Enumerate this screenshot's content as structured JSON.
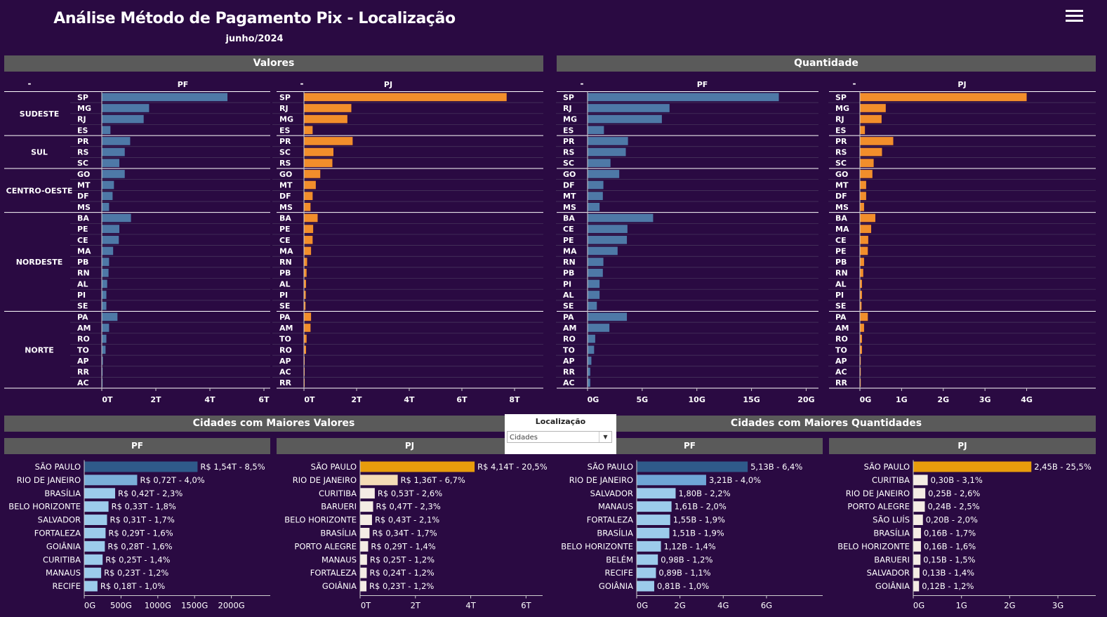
{
  "header": {
    "title": "Análise Método de Pagamento Pix - Localização",
    "subtitle": "junho/2024",
    "menu_icon": "hamburger-menu-icon"
  },
  "colors": {
    "background": "#2a0a42",
    "pf_bar": "#4e79a7",
    "pj_bar": "#f28e2b",
    "section_bar": "#5a5a5a"
  },
  "sections": {
    "valores": "Valores",
    "quantidade": "Quantidade",
    "cidades_valores": "Cidades com Maiores Valores",
    "cidades_quantidades": "Cidades com Maiores Quantidades"
  },
  "filter": {
    "title": "Localização",
    "selected": "Cidades"
  },
  "chart_data": [
    {
      "id": "valores-pf",
      "type": "bar",
      "orientation": "horizontal",
      "header": "PF",
      "row_header": "-",
      "unit": "T",
      "ticks": [
        0,
        2,
        4,
        6
      ],
      "tick_labels": [
        "0T",
        "2T",
        "4T",
        "6T"
      ],
      "xlim": [
        0,
        6
      ],
      "groups": [
        {
          "region": "SUDESTE",
          "items": [
            {
              "uf": "SP",
              "v": 4.65
            },
            {
              "uf": "MG",
              "v": 1.75
            },
            {
              "uf": "RJ",
              "v": 1.55
            },
            {
              "uf": "ES",
              "v": 0.32
            }
          ]
        },
        {
          "region": "SUL",
          "items": [
            {
              "uf": "PR",
              "v": 1.05
            },
            {
              "uf": "RS",
              "v": 0.85
            },
            {
              "uf": "SC",
              "v": 0.65
            }
          ]
        },
        {
          "region": "CENTRO-OESTE",
          "items": [
            {
              "uf": "GO",
              "v": 0.85
            },
            {
              "uf": "MT",
              "v": 0.45
            },
            {
              "uf": "DF",
              "v": 0.4
            },
            {
              "uf": "MS",
              "v": 0.27
            }
          ]
        },
        {
          "region": "NORDESTE",
          "items": [
            {
              "uf": "BA",
              "v": 1.08
            },
            {
              "uf": "PE",
              "v": 0.65
            },
            {
              "uf": "CE",
              "v": 0.63
            },
            {
              "uf": "MA",
              "v": 0.42
            },
            {
              "uf": "PB",
              "v": 0.27
            },
            {
              "uf": "RN",
              "v": 0.25
            },
            {
              "uf": "AL",
              "v": 0.2
            },
            {
              "uf": "PI",
              "v": 0.17
            },
            {
              "uf": "SE",
              "v": 0.17
            }
          ]
        },
        {
          "region": "NORTE",
          "items": [
            {
              "uf": "PA",
              "v": 0.58
            },
            {
              "uf": "AM",
              "v": 0.27
            },
            {
              "uf": "RO",
              "v": 0.17
            },
            {
              "uf": "TO",
              "v": 0.14
            },
            {
              "uf": "AP",
              "v": 0.04
            },
            {
              "uf": "RR",
              "v": 0.03
            },
            {
              "uf": "AC",
              "v": 0.03
            }
          ]
        }
      ]
    },
    {
      "id": "valores-pj",
      "type": "bar",
      "orientation": "horizontal",
      "header": "PJ",
      "row_header": "-",
      "unit": "T",
      "ticks": [
        0,
        2,
        4,
        6,
        8
      ],
      "tick_labels": [
        "0T",
        "2T",
        "4T",
        "6T",
        "8T"
      ],
      "xlim": [
        0,
        8
      ],
      "groups": [
        {
          "region": "SUDESTE",
          "items": [
            {
              "uf": "SP",
              "v": 7.7
            },
            {
              "uf": "RJ",
              "v": 1.8
            },
            {
              "uf": "MG",
              "v": 1.65
            },
            {
              "uf": "ES",
              "v": 0.33
            }
          ]
        },
        {
          "region": "SUL",
          "items": [
            {
              "uf": "PR",
              "v": 1.85
            },
            {
              "uf": "SC",
              "v": 1.12
            },
            {
              "uf": "RS",
              "v": 1.08
            }
          ]
        },
        {
          "region": "CENTRO-OESTE",
          "items": [
            {
              "uf": "GO",
              "v": 0.62
            },
            {
              "uf": "MT",
              "v": 0.45
            },
            {
              "uf": "DF",
              "v": 0.33
            },
            {
              "uf": "MS",
              "v": 0.25
            }
          ]
        },
        {
          "region": "NORDESTE",
          "items": [
            {
              "uf": "BA",
              "v": 0.52
            },
            {
              "uf": "PE",
              "v": 0.35
            },
            {
              "uf": "CE",
              "v": 0.33
            },
            {
              "uf": "MA",
              "v": 0.27
            },
            {
              "uf": "RN",
              "v": 0.12
            },
            {
              "uf": "PB",
              "v": 0.1
            },
            {
              "uf": "AL",
              "v": 0.08
            },
            {
              "uf": "PI",
              "v": 0.07
            },
            {
              "uf": "SE",
              "v": 0.06
            }
          ]
        },
        {
          "region": "NORTE",
          "items": [
            {
              "uf": "PA",
              "v": 0.27
            },
            {
              "uf": "AM",
              "v": 0.25
            },
            {
              "uf": "TO",
              "v": 0.1
            },
            {
              "uf": "RO",
              "v": 0.08
            },
            {
              "uf": "AP",
              "v": 0.02
            },
            {
              "uf": "AC",
              "v": 0.02
            },
            {
              "uf": "RR",
              "v": 0.02
            }
          ]
        }
      ]
    },
    {
      "id": "quantidade-pf",
      "type": "bar",
      "orientation": "horizontal",
      "header": "PF",
      "row_header": "-",
      "unit": "G",
      "ticks": [
        0,
        5,
        10,
        15,
        20
      ],
      "tick_labels": [
        "0G",
        "5G",
        "10G",
        "15G",
        "20G"
      ],
      "xlim": [
        0,
        21
      ],
      "groups": [
        {
          "region": "SUDESTE",
          "items": [
            {
              "uf": "SP",
              "v": 17.5
            },
            {
              "uf": "RJ",
              "v": 7.5
            },
            {
              "uf": "MG",
              "v": 6.8
            },
            {
              "uf": "ES",
              "v": 1.5
            }
          ]
        },
        {
          "region": "SUL",
          "items": [
            {
              "uf": "PR",
              "v": 3.7
            },
            {
              "uf": "RS",
              "v": 3.5
            },
            {
              "uf": "SC",
              "v": 2.1
            }
          ]
        },
        {
          "region": "CENTRO-OESTE",
          "items": [
            {
              "uf": "GO",
              "v": 2.9
            },
            {
              "uf": "DF",
              "v": 1.45
            },
            {
              "uf": "MT",
              "v": 1.4
            },
            {
              "uf": "MS",
              "v": 1.1
            }
          ]
        },
        {
          "region": "NORDESTE",
          "items": [
            {
              "uf": "BA",
              "v": 6.0
            },
            {
              "uf": "CE",
              "v": 3.65
            },
            {
              "uf": "PE",
              "v": 3.6
            },
            {
              "uf": "MA",
              "v": 2.75
            },
            {
              "uf": "RN",
              "v": 1.45
            },
            {
              "uf": "PB",
              "v": 1.4
            },
            {
              "uf": "PI",
              "v": 1.1
            },
            {
              "uf": "AL",
              "v": 1.1
            },
            {
              "uf": "SE",
              "v": 0.85
            }
          ]
        },
        {
          "region": "NORTE",
          "items": [
            {
              "uf": "PA",
              "v": 3.6
            },
            {
              "uf": "AM",
              "v": 2.0
            },
            {
              "uf": "RO",
              "v": 0.7
            },
            {
              "uf": "TO",
              "v": 0.6
            },
            {
              "uf": "AP",
              "v": 0.35
            },
            {
              "uf": "RR",
              "v": 0.25
            },
            {
              "uf": "AC",
              "v": 0.25
            }
          ]
        }
      ]
    },
    {
      "id": "quantidade-pj",
      "type": "bar",
      "orientation": "horizontal",
      "header": "PJ",
      "row_header": "-",
      "unit": "G",
      "ticks": [
        0,
        1,
        2,
        3,
        4
      ],
      "tick_labels": [
        "0G",
        "1G",
        "2G",
        "3G",
        "4G"
      ],
      "xlim": [
        0,
        4.9
      ],
      "groups": [
        {
          "region": "SUDESTE",
          "items": [
            {
              "uf": "SP",
              "v": 4.0
            },
            {
              "uf": "MG",
              "v": 0.62
            },
            {
              "uf": "RJ",
              "v": 0.52
            },
            {
              "uf": "ES",
              "v": 0.12
            }
          ]
        },
        {
          "region": "SUL",
          "items": [
            {
              "uf": "PR",
              "v": 0.8
            },
            {
              "uf": "RS",
              "v": 0.53
            },
            {
              "uf": "SC",
              "v": 0.33
            }
          ]
        },
        {
          "region": "CENTRO-OESTE",
          "items": [
            {
              "uf": "GO",
              "v": 0.3
            },
            {
              "uf": "MT",
              "v": 0.15
            },
            {
              "uf": "DF",
              "v": 0.15
            },
            {
              "uf": "MS",
              "v": 0.1
            }
          ]
        },
        {
          "region": "NORDESTE",
          "items": [
            {
              "uf": "BA",
              "v": 0.37
            },
            {
              "uf": "MA",
              "v": 0.27
            },
            {
              "uf": "CE",
              "v": 0.2
            },
            {
              "uf": "PE",
              "v": 0.19
            },
            {
              "uf": "PB",
              "v": 0.1
            },
            {
              "uf": "RN",
              "v": 0.08
            },
            {
              "uf": "AL",
              "v": 0.05
            },
            {
              "uf": "PI",
              "v": 0.05
            },
            {
              "uf": "SE",
              "v": 0.04
            }
          ]
        },
        {
          "region": "NORTE",
          "items": [
            {
              "uf": "PA",
              "v": 0.19
            },
            {
              "uf": "AM",
              "v": 0.1
            },
            {
              "uf": "RO",
              "v": 0.05
            },
            {
              "uf": "TO",
              "v": 0.05
            },
            {
              "uf": "AP",
              "v": 0.02
            },
            {
              "uf": "AC",
              "v": 0.02
            },
            {
              "uf": "RR",
              "v": 0.02
            }
          ]
        }
      ]
    },
    {
      "id": "cidades-valores-pf",
      "type": "bar",
      "orientation": "horizontal",
      "header": "PF",
      "ticks": [
        0,
        500,
        1000,
        1500,
        2000
      ],
      "tick_labels": [
        "0G",
        "500G",
        "1000G",
        "1500G",
        "2000G"
      ],
      "xlim": [
        0,
        2500
      ],
      "items": [
        {
          "city": "SÃO PAULO",
          "v": 1540,
          "label": "R$ 1,54T - 8,5%",
          "color": "#2f5a8a"
        },
        {
          "city": "RIO DE JANEIRO",
          "v": 720,
          "label": "R$ 0,72T - 4,0%",
          "color": "#7bafd9"
        },
        {
          "city": "BRASÍLIA",
          "v": 420,
          "label": "R$ 0,42T - 2,3%",
          "color": "#9ccbeb"
        },
        {
          "city": "BELO HORIZONTE",
          "v": 330,
          "label": "R$ 0,33T - 1,8%",
          "color": "#9ccbeb"
        },
        {
          "city": "SALVADOR",
          "v": 310,
          "label": "R$ 0,31T - 1,7%",
          "color": "#9ccbeb"
        },
        {
          "city": "FORTALEZA",
          "v": 290,
          "label": "R$ 0,29T - 1,6%",
          "color": "#9ccbeb"
        },
        {
          "city": "GOIÂNIA",
          "v": 280,
          "label": "R$ 0,28T - 1,6%",
          "color": "#9ccbeb"
        },
        {
          "city": "CURITIBA",
          "v": 250,
          "label": "R$ 0,25T - 1,4%",
          "color": "#9ccbeb"
        },
        {
          "city": "MANAUS",
          "v": 230,
          "label": "R$ 0,23T - 1,2%",
          "color": "#9ccbeb"
        },
        {
          "city": "RECIFE",
          "v": 180,
          "label": "R$ 0,18T - 1,0%",
          "color": "#9ccbeb"
        }
      ]
    },
    {
      "id": "cidades-valores-pj",
      "type": "bar",
      "orientation": "horizontal",
      "header": "PJ",
      "ticks": [
        0,
        2,
        4,
        6
      ],
      "tick_labels": [
        "0T",
        "2T",
        "4T",
        "6T"
      ],
      "xlim": [
        0,
        6.6
      ],
      "items": [
        {
          "city": "SÃO PAULO",
          "v": 4.14,
          "label": "R$ 4,14T - 20,5%",
          "color": "#e89c0c"
        },
        {
          "city": "RIO DE JANEIRO",
          "v": 1.36,
          "label": "R$ 1,36T - 6,7%",
          "color": "#f4dcb6"
        },
        {
          "city": "CURITIBA",
          "v": 0.53,
          "label": "R$ 0,53T - 2,6%",
          "color": "#f4ece4"
        },
        {
          "city": "BARUERI",
          "v": 0.47,
          "label": "R$ 0,47T - 2,3%",
          "color": "#f4ece4"
        },
        {
          "city": "BELO HORIZONTE",
          "v": 0.43,
          "label": "R$ 0,43T - 2,1%",
          "color": "#f4ece4"
        },
        {
          "city": "BRASÍLIA",
          "v": 0.34,
          "label": "R$ 0,34T - 1,7%",
          "color": "#f4ece4"
        },
        {
          "city": "PORTO ALEGRE",
          "v": 0.29,
          "label": "R$ 0,29T - 1,4%",
          "color": "#f4ece4"
        },
        {
          "city": "MANAUS",
          "v": 0.25,
          "label": "R$ 0,25T - 1,2%",
          "color": "#f4ece4"
        },
        {
          "city": "FORTALEZA",
          "v": 0.24,
          "label": "R$ 0,24T - 1,2%",
          "color": "#f4ece4"
        },
        {
          "city": "GOIÂNIA",
          "v": 0.23,
          "label": "R$ 0,23T - 1,2%",
          "color": "#f4ece4"
        }
      ]
    },
    {
      "id": "cidades-quantidades-pf",
      "type": "bar",
      "orientation": "horizontal",
      "header": "PF",
      "ticks": [
        0,
        2,
        4,
        6
      ],
      "tick_labels": [
        "0G",
        "2G",
        "4G",
        "6G"
      ],
      "xlim": [
        0,
        8.5
      ],
      "items": [
        {
          "city": "SÃO PAULO",
          "v": 5.13,
          "label": "5,13B - 6,4%",
          "color": "#2f5a8a"
        },
        {
          "city": "RIO DE JANEIRO",
          "v": 3.21,
          "label": "3,21B - 4,0%",
          "color": "#6fa6d6"
        },
        {
          "city": "SALVADOR",
          "v": 1.8,
          "label": "1,80B - 2,2%",
          "color": "#9ccbeb"
        },
        {
          "city": "MANAUS",
          "v": 1.61,
          "label": "1,61B - 2,0%",
          "color": "#9ccbeb"
        },
        {
          "city": "FORTALEZA",
          "v": 1.55,
          "label": "1,55B - 1,9%",
          "color": "#9ccbeb"
        },
        {
          "city": "BRASÍLIA",
          "v": 1.51,
          "label": "1,51B - 1,9%",
          "color": "#9ccbeb"
        },
        {
          "city": "BELO HORIZONTE",
          "v": 1.12,
          "label": "1,12B - 1,4%",
          "color": "#9ccbeb"
        },
        {
          "city": "BELÉM",
          "v": 0.98,
          "label": "0,98B - 1,2%",
          "color": "#9ccbeb"
        },
        {
          "city": "RECIFE",
          "v": 0.89,
          "label": "0,89B - 1,1%",
          "color": "#9ccbeb"
        },
        {
          "city": "GOIÂNIA",
          "v": 0.81,
          "label": "0,81B - 1,0%",
          "color": "#9ccbeb"
        }
      ]
    },
    {
      "id": "cidades-quantidades-pj",
      "type": "bar",
      "orientation": "horizontal",
      "header": "PJ",
      "ticks": [
        0,
        1,
        2,
        3
      ],
      "tick_labels": [
        "0G",
        "1G",
        "2G",
        "3G"
      ],
      "xlim": [
        0,
        3.8
      ],
      "items": [
        {
          "city": "SÃO PAULO",
          "v": 2.45,
          "label": "2,45B - 25,5%",
          "color": "#e89c0c"
        },
        {
          "city": "CURITIBA",
          "v": 0.3,
          "label": "0,30B - 3,1%",
          "color": "#f4ece4"
        },
        {
          "city": "RIO DE JANEIRO",
          "v": 0.25,
          "label": "0,25B - 2,6%",
          "color": "#f4ece4"
        },
        {
          "city": "PORTO ALEGRE",
          "v": 0.24,
          "label": "0,24B - 2,5%",
          "color": "#f4ece4"
        },
        {
          "city": "SÃO LUÍS",
          "v": 0.2,
          "label": "0,20B - 2,0%",
          "color": "#f4ece4"
        },
        {
          "city": "BRASÍLIA",
          "v": 0.16,
          "label": "0,16B - 1,7%",
          "color": "#f4ece4"
        },
        {
          "city": "BELO HORIZONTE",
          "v": 0.16,
          "label": "0,16B - 1,6%",
          "color": "#f4ece4"
        },
        {
          "city": "BARUERI",
          "v": 0.15,
          "label": "0,15B - 1,5%",
          "color": "#f4ece4"
        },
        {
          "city": "SALVADOR",
          "v": 0.13,
          "label": "0,13B - 1,4%",
          "color": "#f4ece4"
        },
        {
          "city": "GOIÂNIA",
          "v": 0.12,
          "label": "0,12B - 1,2%",
          "color": "#f4ece4"
        }
      ]
    }
  ]
}
